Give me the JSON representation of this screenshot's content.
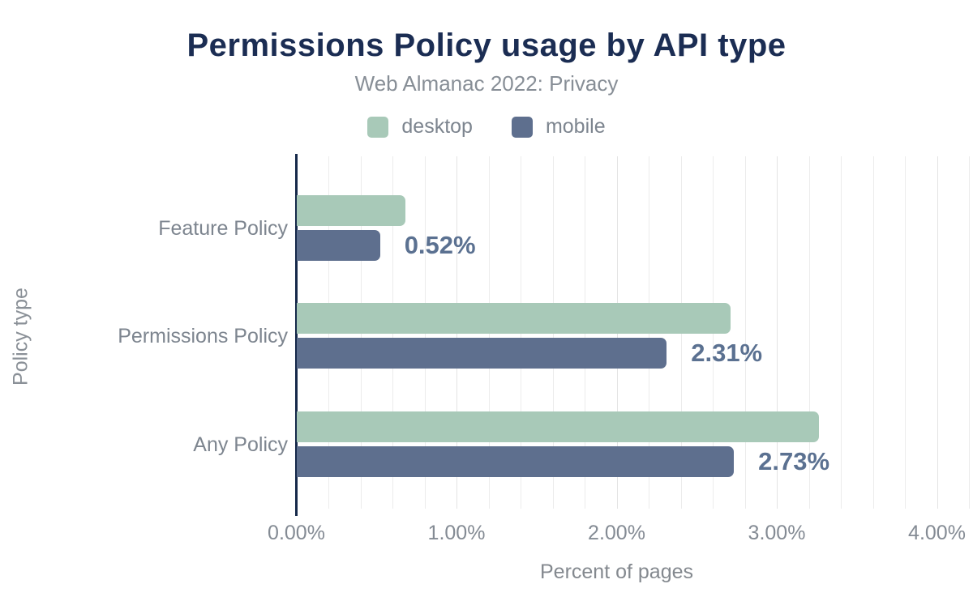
{
  "header": {
    "title": "Permissions Policy usage by API type",
    "subtitle": "Web Almanac 2022: Privacy"
  },
  "legend": {
    "items": [
      {
        "label": "desktop",
        "color": "#a8c9b8"
      },
      {
        "label": "mobile",
        "color": "#5e6f8e"
      }
    ]
  },
  "chart_data": {
    "type": "bar",
    "orientation": "horizontal",
    "title": "Permissions Policy usage by API type",
    "subtitle": "Web Almanac 2022: Privacy",
    "xlabel": "Percent of pages",
    "ylabel": "Policy type",
    "xlim": [
      0,
      4.2
    ],
    "minor_grid_step": 0.2,
    "grid": true,
    "legend_position": "top",
    "categories": [
      "Feature Policy",
      "Permissions Policy",
      "Any Policy"
    ],
    "series": [
      {
        "name": "desktop",
        "color": "#a8c9b8",
        "values": [
          0.68,
          2.71,
          3.26
        ]
      },
      {
        "name": "mobile",
        "color": "#5e6f8e",
        "values": [
          0.52,
          2.31,
          2.73
        ]
      }
    ],
    "bar_labels": {
      "labeled_series": "mobile",
      "texts": [
        "0.52%",
        "2.31%",
        "2.73%"
      ]
    },
    "xticks": [
      {
        "value": 0,
        "label": "0.00%"
      },
      {
        "value": 1,
        "label": "1.00%"
      },
      {
        "value": 2,
        "label": "2.00%"
      },
      {
        "value": 3,
        "label": "3.00%"
      },
      {
        "value": 4,
        "label": "4.00%"
      }
    ]
  },
  "colors": {
    "title": "#1b2d53",
    "subtitle": "#878e96",
    "axis_line": "#16294a",
    "grid_minor": "#ececec",
    "grid_major": "#e3e3e3",
    "tick_label": "#848b94",
    "category_label": "#7d858f",
    "axis_title": "#84898f",
    "value_label": "#5b7191",
    "background": "#ffffff"
  }
}
